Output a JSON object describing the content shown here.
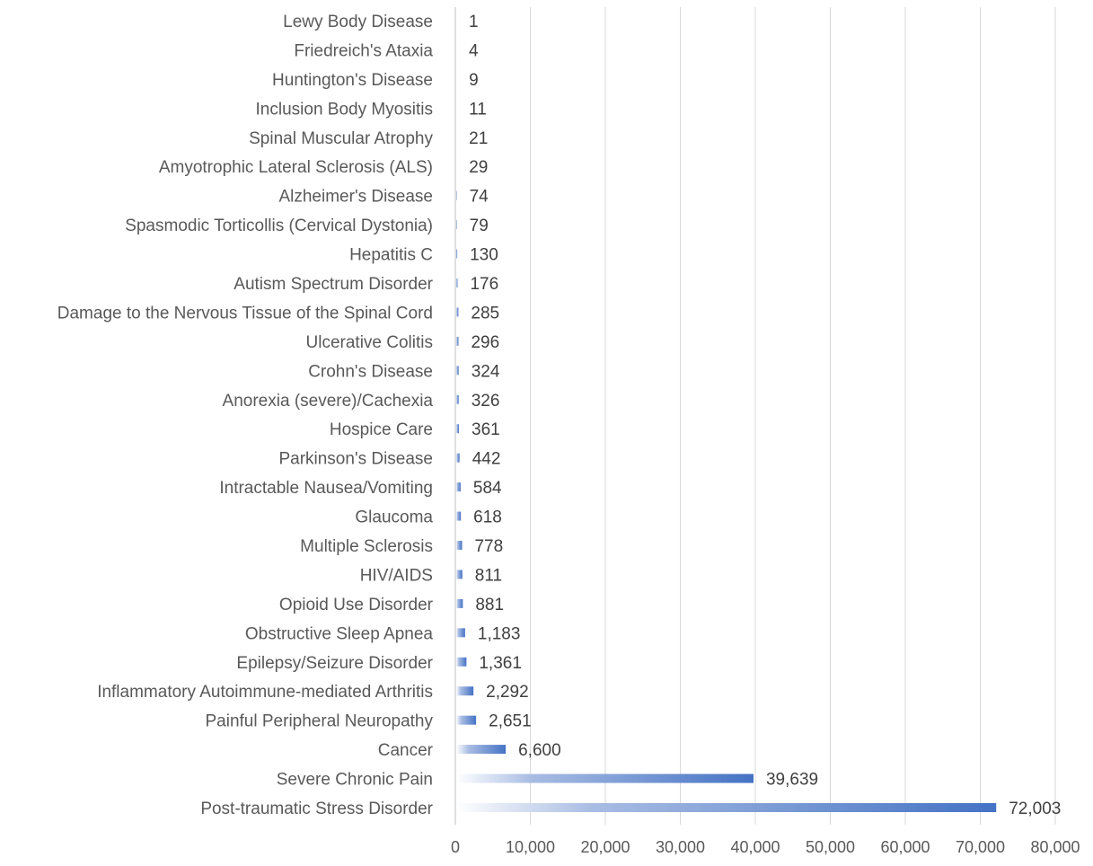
{
  "chart_data": {
    "type": "bar",
    "orientation": "horizontal",
    "title": "",
    "xlabel": "",
    "ylabel": "",
    "xlim": [
      0,
      80000
    ],
    "x_ticks": [
      "0",
      "10,000",
      "20,000",
      "30,000",
      "40,000",
      "50,000",
      "60,000",
      "70,000",
      "80,000"
    ],
    "grid": true,
    "legend": "none",
    "bar_color": "#4472C4",
    "categories": [
      "Lewy Body Disease",
      "Friedreich's Ataxia",
      "Huntington's Disease",
      "Inclusion Body Myositis",
      "Spinal Muscular Atrophy",
      "Amyotrophic Lateral Sclerosis (ALS)",
      "Alzheimer's Disease",
      "Spasmodic Torticollis (Cervical Dystonia)",
      "Hepatitis C",
      "Autism Spectrum Disorder",
      "Damage to the Nervous Tissue of the Spinal Cord",
      "Ulcerative Colitis",
      "Crohn's Disease",
      "Anorexia (severe)/Cachexia",
      "Hospice Care",
      "Parkinson's Disease",
      "Intractable Nausea/Vomiting",
      "Glaucoma",
      "Multiple Sclerosis",
      "HIV/AIDS",
      "Opioid Use Disorder",
      "Obstructive Sleep Apnea",
      "Epilepsy/Seizure Disorder",
      "Inflammatory Autoimmune-mediated Arthritis",
      "Painful Peripheral Neuropathy",
      "Cancer",
      "Severe Chronic Pain",
      "Post-traumatic Stress Disorder"
    ],
    "values": [
      1,
      4,
      9,
      11,
      21,
      29,
      74,
      79,
      130,
      176,
      285,
      296,
      324,
      326,
      361,
      442,
      584,
      618,
      778,
      811,
      881,
      1183,
      1361,
      2292,
      2651,
      6600,
      39639,
      72003
    ],
    "data_labels": [
      "1",
      "4",
      "9",
      "11",
      "21",
      "29",
      "74",
      "79",
      "130",
      "176",
      "285",
      "296",
      "324",
      "326",
      "361",
      "442",
      "584",
      "618",
      "778",
      "811",
      "881",
      "1,183",
      "1,361",
      "2,292",
      "2,651",
      "6,600",
      "39,639",
      "72,003"
    ]
  }
}
